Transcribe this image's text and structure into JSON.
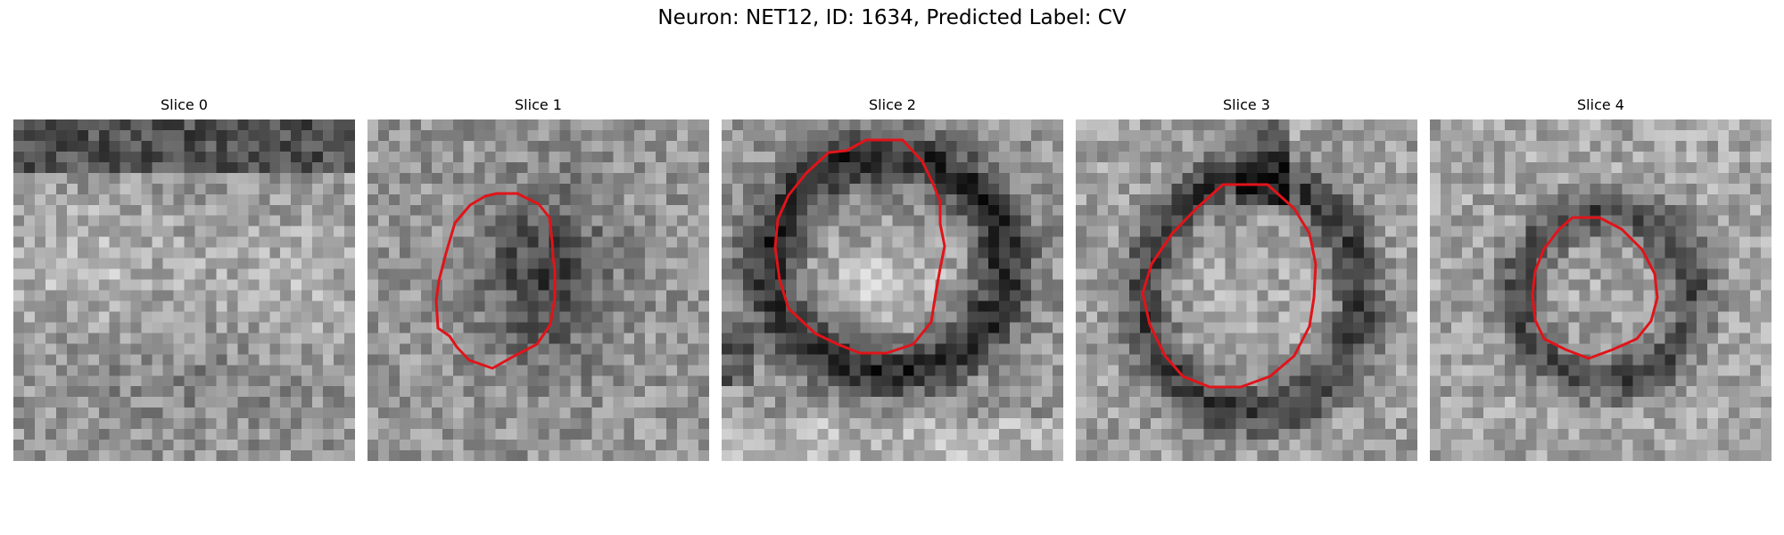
{
  "figure": {
    "title": "Neuron: NET12, ID: 1634, Predicted Label: CV"
  },
  "panels": [
    {
      "title": "Slice 0",
      "has_contour": false
    },
    {
      "title": "Slice 1",
      "has_contour": true
    },
    {
      "title": "Slice 2",
      "has_contour": true
    },
    {
      "title": "Slice 3",
      "has_contour": true
    },
    {
      "title": "Slice 4",
      "has_contour": true
    }
  ],
  "colors": {
    "contour": "#e0141a",
    "background": "#ffffff"
  },
  "image_style": "grayscale noisy electron-microscopy patch, 32x32 pixels"
}
